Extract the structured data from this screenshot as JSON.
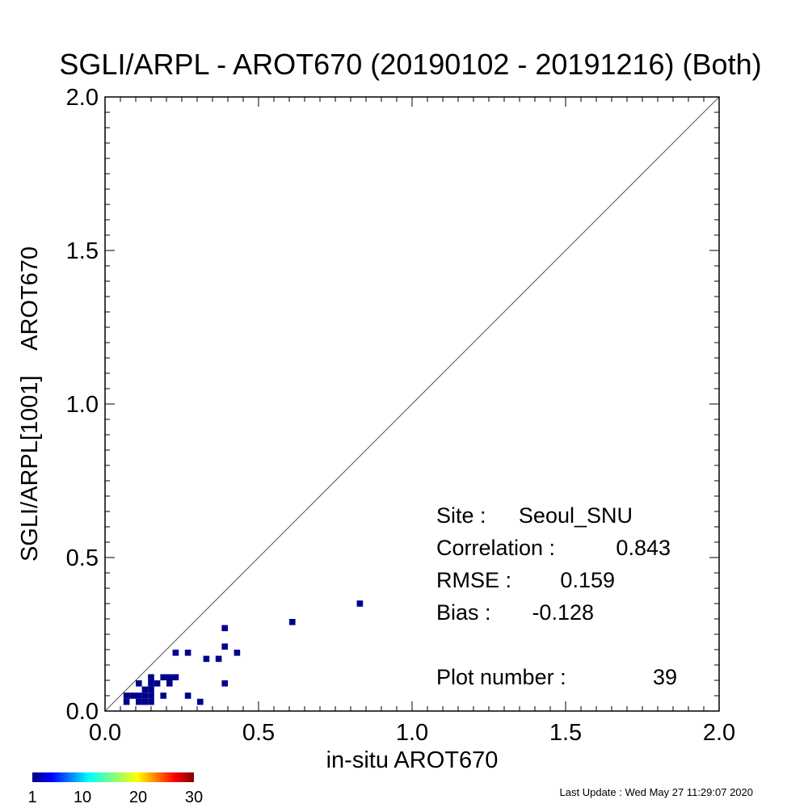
{
  "chart_data": {
    "type": "scatter",
    "title": "SGLI/ARPL - AROT670 (20190102 - 20191216) (Both)",
    "xlabel": "in-situ AROT670",
    "ylabel": "SGLI/ARPL[1001]    AROT670",
    "xlim": [
      0.0,
      2.0
    ],
    "ylim": [
      0.0,
      2.0
    ],
    "x_ticks": [
      "0.0",
      "0.5",
      "1.0",
      "1.5",
      "2.0"
    ],
    "y_ticks": [
      "0.0",
      "0.5",
      "1.0",
      "1.5",
      "2.0"
    ],
    "x_tick_values": [
      0.0,
      0.5,
      1.0,
      1.5,
      2.0
    ],
    "y_tick_values": [
      0.0,
      0.5,
      1.0,
      1.5,
      2.0
    ],
    "one_to_one_line": true,
    "grid": false,
    "point_color": "#00008b",
    "points": [
      {
        "x": 0.07,
        "y": 0.05
      },
      {
        "x": 0.07,
        "y": 0.03
      },
      {
        "x": 0.09,
        "y": 0.05
      },
      {
        "x": 0.11,
        "y": 0.09
      },
      {
        "x": 0.11,
        "y": 0.05
      },
      {
        "x": 0.11,
        "y": 0.03
      },
      {
        "x": 0.13,
        "y": 0.07
      },
      {
        "x": 0.13,
        "y": 0.05
      },
      {
        "x": 0.13,
        "y": 0.03
      },
      {
        "x": 0.15,
        "y": 0.11
      },
      {
        "x": 0.15,
        "y": 0.09
      },
      {
        "x": 0.15,
        "y": 0.07
      },
      {
        "x": 0.15,
        "y": 0.05
      },
      {
        "x": 0.15,
        "y": 0.03
      },
      {
        "x": 0.17,
        "y": 0.09
      },
      {
        "x": 0.19,
        "y": 0.11
      },
      {
        "x": 0.19,
        "y": 0.05
      },
      {
        "x": 0.21,
        "y": 0.11
      },
      {
        "x": 0.21,
        "y": 0.09
      },
      {
        "x": 0.23,
        "y": 0.19
      },
      {
        "x": 0.23,
        "y": 0.11
      },
      {
        "x": 0.27,
        "y": 0.19
      },
      {
        "x": 0.27,
        "y": 0.05
      },
      {
        "x": 0.31,
        "y": 0.03
      },
      {
        "x": 0.33,
        "y": 0.17
      },
      {
        "x": 0.37,
        "y": 0.17
      },
      {
        "x": 0.39,
        "y": 0.27
      },
      {
        "x": 0.39,
        "y": 0.21
      },
      {
        "x": 0.39,
        "y": 0.09
      },
      {
        "x": 0.43,
        "y": 0.19
      },
      {
        "x": 0.61,
        "y": 0.29
      },
      {
        "x": 0.83,
        "y": 0.35
      }
    ],
    "stats": {
      "site_label": "Site :",
      "site_value": "Seoul_SNU",
      "correlation_label": "Correlation :",
      "correlation_value": "0.843",
      "rmse_label": "RMSE :",
      "rmse_value": "0.159",
      "bias_label": "Bias :",
      "bias_value": "-0.128",
      "plot_number_label": "Plot number :",
      "plot_number_value": "39"
    },
    "colorbar": {
      "ticks": [
        "1",
        "10",
        "20",
        "30"
      ],
      "tick_values": [
        1,
        10,
        20,
        30
      ],
      "range": [
        1,
        30
      ],
      "colormap": "rainbow (blue to red)"
    }
  },
  "footer": {
    "last_update": "Last Update : Wed May 27 11:29:07 2020"
  }
}
